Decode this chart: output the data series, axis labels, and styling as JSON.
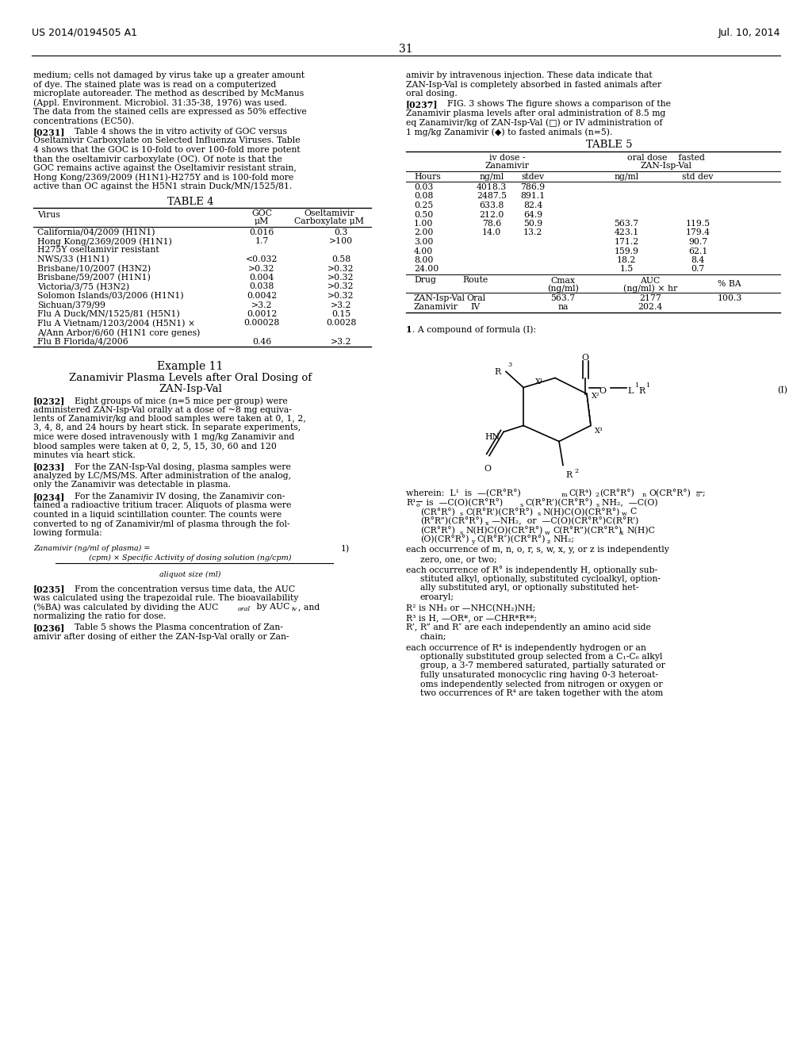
{
  "header_left": "US 2014/0194505 A1",
  "header_right": "Jul. 10, 2014",
  "page_number": "31",
  "background_color": "#ffffff",
  "text_color": "#000000",
  "font_size_body": 7.8,
  "font_size_header": 9.0,
  "font_size_table_title": 9.5
}
